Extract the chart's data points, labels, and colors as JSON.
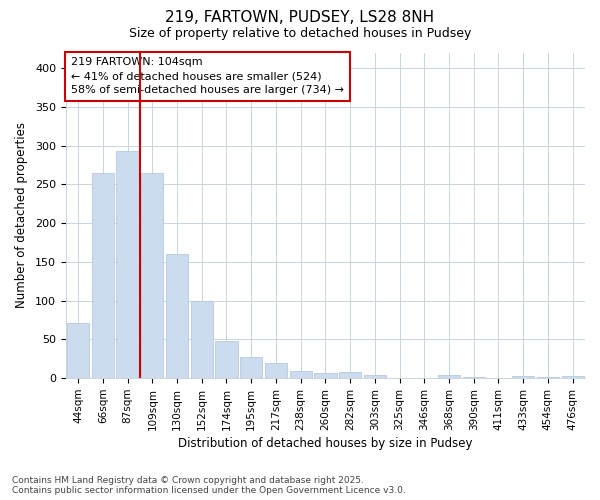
{
  "title1": "219, FARTOWN, PUDSEY, LS28 8NH",
  "title2": "Size of property relative to detached houses in Pudsey",
  "xlabel": "Distribution of detached houses by size in Pudsey",
  "ylabel": "Number of detached properties",
  "categories": [
    "44sqm",
    "66sqm",
    "87sqm",
    "109sqm",
    "130sqm",
    "152sqm",
    "174sqm",
    "195sqm",
    "217sqm",
    "238sqm",
    "260sqm",
    "282sqm",
    "303sqm",
    "325sqm",
    "346sqm",
    "368sqm",
    "390sqm",
    "411sqm",
    "433sqm",
    "454sqm",
    "476sqm"
  ],
  "values": [
    71,
    264,
    293,
    265,
    160,
    99,
    48,
    27,
    19,
    9,
    7,
    8,
    4,
    0,
    0,
    4,
    1,
    0,
    3,
    2,
    3
  ],
  "bar_color": "#ccdcee",
  "bar_edge_color": "#aac4dc",
  "vline_x": 2.5,
  "vline_color": "#cc0000",
  "annotation_text": "219 FARTOWN: 104sqm\n← 41% of detached houses are smaller (524)\n58% of semi-detached houses are larger (734) →",
  "annotation_box_facecolor": "#ffffff",
  "annotation_box_edgecolor": "#cc0000",
  "grid_color": "#c8d4e0",
  "ylim": [
    0,
    420
  ],
  "yticks": [
    0,
    50,
    100,
    150,
    200,
    250,
    300,
    350,
    400
  ],
  "footer1": "Contains HM Land Registry data © Crown copyright and database right 2025.",
  "footer2": "Contains public sector information licensed under the Open Government Licence v3.0.",
  "bg_color": "#ffffff",
  "plot_bg_color": "#ffffff"
}
